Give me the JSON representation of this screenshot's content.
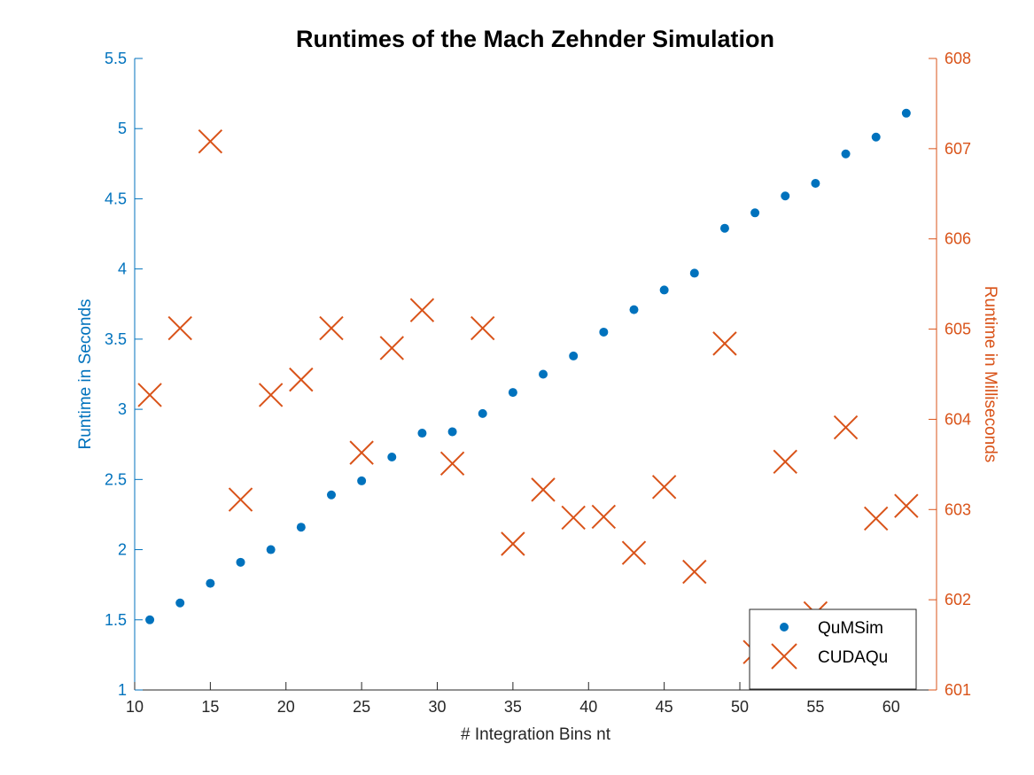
{
  "chart_data": {
    "type": "scatter",
    "title": "Runtimes of the Mach Zehnder Simulation",
    "xlabel": "# Integration Bins nt",
    "ylabel_left": "Runtime in Seconds",
    "ylabel_right": "Runtime in Milliseconds",
    "xlim": [
      10,
      63
    ],
    "ylim_left": [
      1,
      5.5
    ],
    "ylim_right": [
      601,
      608
    ],
    "xticks": [
      10,
      15,
      20,
      25,
      30,
      35,
      40,
      45,
      50,
      55,
      60
    ],
    "xtick_labels": [
      "10",
      "15",
      "20",
      "25",
      "30",
      "35",
      "40",
      "45",
      "50",
      "55",
      "60"
    ],
    "yticks_left": [
      1,
      1.5,
      2,
      2.5,
      3,
      3.5,
      4,
      4.5,
      5,
      5.5
    ],
    "ytick_labels_left": [
      "1",
      "1.5",
      "2",
      "2.5",
      "3",
      "3.5",
      "4",
      "4.5",
      "5",
      "5.5"
    ],
    "yticks_right": [
      601,
      602,
      603,
      604,
      605,
      606,
      607,
      608
    ],
    "ytick_labels_right": [
      "601",
      "602",
      "603",
      "604",
      "605",
      "606",
      "607",
      "608"
    ],
    "grid": false,
    "legend_position": "bottom-right",
    "series": [
      {
        "name": "QuMSim",
        "axis": "left",
        "marker": "dot",
        "color": "#0072BD",
        "x": [
          11,
          13,
          15,
          17,
          19,
          21,
          23,
          25,
          27,
          29,
          31,
          33,
          35,
          37,
          39,
          41,
          43,
          45,
          47,
          49,
          51,
          53,
          55,
          57,
          59,
          61
        ],
        "y": [
          1.5,
          1.62,
          1.76,
          1.91,
          2.0,
          2.16,
          2.39,
          2.49,
          2.66,
          2.83,
          2.84,
          2.97,
          3.12,
          3.25,
          3.38,
          3.55,
          3.71,
          3.85,
          3.97,
          4.29,
          4.4,
          4.52,
          4.61,
          4.82,
          4.94,
          5.11
        ]
      },
      {
        "name": "CUDAQu",
        "axis": "right",
        "marker": "x",
        "color": "#D95319",
        "x": [
          11,
          13,
          15,
          17,
          19,
          21,
          23,
          25,
          27,
          29,
          31,
          33,
          35,
          37,
          39,
          41,
          43,
          45,
          47,
          49,
          51,
          53,
          55,
          57,
          59,
          61
        ],
        "y": [
          604.27,
          605.01,
          607.08,
          603.11,
          604.27,
          604.44,
          605.01,
          603.63,
          604.79,
          605.21,
          603.51,
          605.01,
          602.62,
          603.22,
          602.91,
          602.92,
          602.52,
          603.25,
          602.31,
          604.84,
          601.42,
          603.53,
          601.85,
          603.91,
          602.9,
          603.04
        ]
      }
    ]
  }
}
